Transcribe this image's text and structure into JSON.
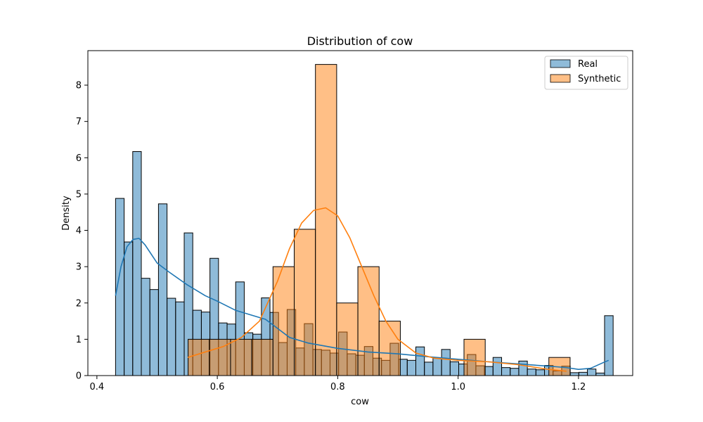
{
  "chart_data": {
    "type": "histogram",
    "title": "Distribution of cow",
    "xlabel": "cow",
    "ylabel": "Density",
    "xlim": [
      0.385,
      1.29
    ],
    "ylim": [
      0,
      8.95
    ],
    "xticks": [
      0.4,
      0.6,
      0.8,
      1.0,
      1.2
    ],
    "xtick_labels": [
      "0.4",
      "0.6",
      "0.8",
      "1.0",
      "1.2"
    ],
    "yticks": [
      0,
      1,
      2,
      3,
      4,
      5,
      6,
      7,
      8
    ],
    "ytick_labels": [
      "0",
      "1",
      "2",
      "3",
      "4",
      "5",
      "6",
      "7",
      "8"
    ],
    "grid": false,
    "legend": {
      "position": "top-right"
    },
    "series": [
      {
        "name": "Real",
        "color": "#1f77b4",
        "bin_start": 0.431,
        "bin_width": 0.01425,
        "values": [
          4.88,
          3.68,
          6.17,
          2.68,
          2.37,
          4.73,
          2.13,
          2.03,
          3.93,
          1.8,
          1.75,
          3.23,
          1.45,
          1.42,
          2.58,
          1.18,
          1.14,
          2.14,
          1.74,
          0.91,
          1.82,
          0.76,
          1.43,
          0.72,
          0.7,
          0.62,
          1.2,
          0.6,
          0.56,
          0.8,
          0.48,
          0.42,
          0.89,
          0.45,
          0.42,
          0.79,
          0.37,
          0.48,
          0.72,
          0.38,
          0.32,
          0.58,
          0.27,
          0.25,
          0.5,
          0.22,
          0.2,
          0.4,
          0.18,
          0.16,
          0.28,
          0.13,
          0.26,
          0.08,
          0.09,
          0.18,
          0.07,
          1.65
        ],
        "kde": {
          "x": [
            0.431,
            0.44,
            0.45,
            0.46,
            0.47,
            0.48,
            0.49,
            0.5,
            0.52,
            0.55,
            0.58,
            0.6,
            0.63,
            0.66,
            0.68,
            0.7,
            0.72,
            0.75,
            0.8,
            0.85,
            0.9,
            0.95,
            1.0,
            1.05,
            1.1,
            1.15,
            1.18,
            1.2,
            1.22,
            1.24,
            1.25
          ],
          "y": [
            2.2,
            3.0,
            3.55,
            3.75,
            3.78,
            3.6,
            3.35,
            3.1,
            2.85,
            2.5,
            2.2,
            2.05,
            1.8,
            1.65,
            1.55,
            1.3,
            1.05,
            0.9,
            0.75,
            0.65,
            0.6,
            0.52,
            0.45,
            0.38,
            0.32,
            0.26,
            0.22,
            0.17,
            0.2,
            0.35,
            0.42
          ]
        }
      },
      {
        "name": "Synthetic",
        "color": "#ff7f0e",
        "bin_start": 0.5515,
        "bin_width": 0.03525,
        "values": [
          1.0,
          1.0,
          1.0,
          1.0,
          3.0,
          4.03,
          8.57,
          2.0,
          3.0,
          1.5,
          0.0,
          0.0,
          0.0,
          1.0,
          0.0,
          0.0,
          0.0,
          0.5
        ],
        "kde": {
          "x": [
            0.551,
            0.58,
            0.61,
            0.64,
            0.67,
            0.7,
            0.72,
            0.74,
            0.76,
            0.78,
            0.8,
            0.82,
            0.84,
            0.86,
            0.88,
            0.9,
            0.93,
            0.96,
            1.0,
            1.05,
            1.1,
            1.15,
            1.18
          ],
          "y": [
            0.5,
            0.65,
            0.8,
            1.05,
            1.5,
            2.6,
            3.5,
            4.2,
            4.55,
            4.62,
            4.4,
            3.8,
            3.0,
            2.2,
            1.5,
            1.0,
            0.62,
            0.48,
            0.42,
            0.38,
            0.3,
            0.17,
            0.12
          ]
        }
      }
    ]
  }
}
